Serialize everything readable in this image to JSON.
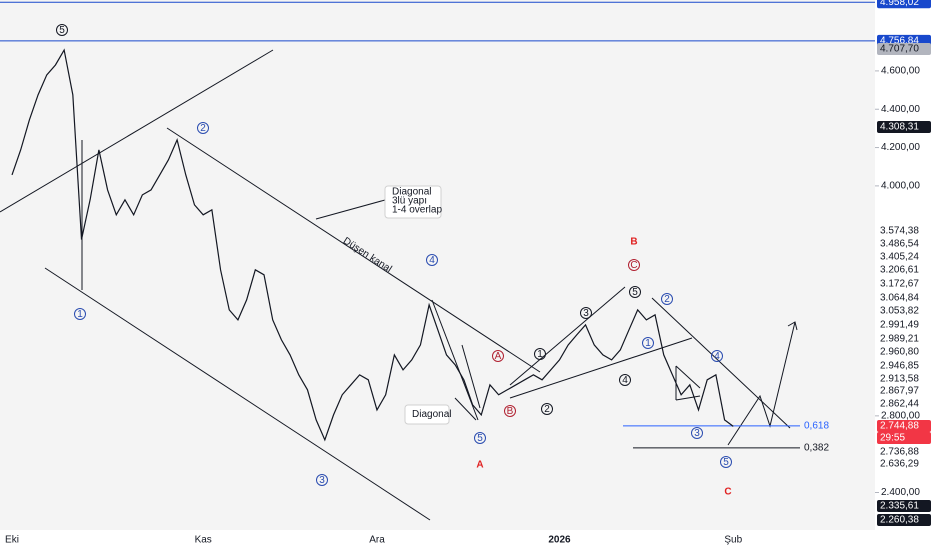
{
  "chart_data": {
    "type": "line",
    "color": "#131722",
    "categories": [
      "Eki",
      null,
      null,
      null,
      null,
      null,
      null,
      null,
      null,
      null,
      null,
      null,
      null,
      null,
      null,
      null,
      null,
      null,
      null,
      null,
      null,
      null,
      "Kas",
      null,
      null,
      null,
      null,
      null,
      null,
      null,
      null,
      null,
      null,
      null,
      null,
      null,
      null,
      null,
      null,
      null,
      null,
      null,
      "Ara",
      null,
      null,
      null,
      null,
      null,
      null,
      null,
      null,
      null,
      null,
      null,
      null,
      null,
      null,
      null,
      null,
      null,
      null,
      null,
      null,
      "2026",
      null,
      null,
      null,
      null,
      null,
      null,
      null,
      null,
      null,
      null,
      null,
      null,
      null,
      null,
      null,
      null,
      null,
      null,
      null,
      "Şub"
    ],
    "values": [
      4057,
      4188,
      4344,
      4475,
      4579,
      4631,
      4709,
      4475,
      3720,
      3930,
      4188,
      3979,
      3849,
      3927,
      3849,
      3953,
      3979,
      4057,
      4136,
      4240,
      4057,
      3901,
      3849,
      3875,
      3562,
      3353,
      3301,
      3405,
      3562,
      3536,
      3301,
      3197,
      3118,
      3014,
      2936,
      2779,
      2675,
      2805,
      2910,
      2962,
      3014,
      2988,
      2831,
      2910,
      3118,
      3040,
      3092,
      3170,
      3379,
      3249,
      3118,
      3066,
      2988,
      2858,
      2805,
      2962,
      2910,
      2936,
      2962,
      2988,
      3014,
      2988,
      3040,
      3092,
      3170,
      3223,
      3275,
      3170,
      3118,
      3092,
      3144,
      3249,
      3353,
      3301,
      3327,
      3118,
      3014,
      2910,
      2962,
      2831,
      2988,
      3014,
      2779,
      2745
    ],
    "ylim": [
      2100,
      4970
    ],
    "yticks": [
      {
        "value": 2400,
        "label": "2.400,00"
      },
      {
        "value": 2800,
        "label": "2.800,00"
      },
      {
        "value": 4000,
        "label": "4.000,00"
      },
      {
        "value": 4200,
        "label": "4.200,00"
      },
      {
        "value": 4400,
        "label": "4.400,00"
      },
      {
        "value": 4600,
        "label": "4.600,00"
      }
    ],
    "hlines": [
      {
        "value": 4958.02,
        "label": "4.958,02",
        "color": "#1848cc"
      },
      {
        "value": 4756.84,
        "label": "4.756,84",
        "color": "#1848cc"
      }
    ],
    "fib_levels": [
      {
        "value": 2748,
        "label": "0,618",
        "color": "#2962ff"
      },
      {
        "value": 2633,
        "label": "0,382",
        "color": "#131722"
      }
    ],
    "price_tags": [
      {
        "label": "4.707,70",
        "bg": "#b2b5be",
        "fg": "#131722"
      },
      {
        "label": "4.308,31",
        "bg": "#131722",
        "fg": "#ffffff"
      },
      {
        "label": "3.574,38",
        "bg": "#ffffff",
        "fg": "#131722"
      },
      {
        "label": "3.486,54",
        "bg": "#ffffff",
        "fg": "#131722"
      },
      {
        "label": "3.405,24",
        "bg": "#ffffff",
        "fg": "#131722"
      },
      {
        "label": "3.206,61",
        "bg": "#ffffff",
        "fg": "#131722"
      },
      {
        "label": "3.172,67",
        "bg": "#ffffff",
        "fg": "#131722"
      },
      {
        "label": "3.064,84",
        "bg": "#ffffff",
        "fg": "#131722"
      },
      {
        "label": "3.053,82",
        "bg": "#ffffff",
        "fg": "#131722"
      },
      {
        "label": "2.991,49",
        "bg": "#ffffff",
        "fg": "#131722"
      },
      {
        "label": "2.989,21",
        "bg": "#ffffff",
        "fg": "#131722"
      },
      {
        "label": "2.960,80",
        "bg": "#ffffff",
        "fg": "#131722"
      },
      {
        "label": "2.946,85",
        "bg": "#ffffff",
        "fg": "#131722"
      },
      {
        "label": "2.913,58",
        "bg": "#ffffff",
        "fg": "#131722"
      },
      {
        "label": "2.867,97",
        "bg": "#ffffff",
        "fg": "#131722"
      },
      {
        "label": "2.862,44",
        "bg": "#ffffff",
        "fg": "#131722"
      },
      {
        "label": "2.744,88",
        "bg": "#f23645",
        "fg": "#ffffff"
      },
      {
        "label": "29:55",
        "bg": "#f23645",
        "fg": "#ffffff"
      },
      {
        "label": "2.736,88",
        "bg": "#ffffff",
        "fg": "#131722"
      },
      {
        "label": "2.636,29",
        "bg": "#ffffff",
        "fg": "#131722"
      },
      {
        "label": "2.335,61",
        "bg": "#131722",
        "fg": "#ffffff"
      },
      {
        "label": "2.260,38",
        "bg": "#131722",
        "fg": "#ffffff"
      }
    ],
    "annotations": [
      {
        "text": "5",
        "color": "#131722",
        "circled": true
      },
      {
        "text": "1",
        "color": "#2a4cb0",
        "circled": true
      },
      {
        "text": "2",
        "color": "#2a4cb0",
        "circled": true
      },
      {
        "text": "3",
        "color": "#2a4cb0",
        "circled": true
      },
      {
        "text": "4",
        "color": "#2a4cb0",
        "circled": true
      },
      {
        "text": "5",
        "color": "#2a4cb0",
        "circled": true
      },
      {
        "text": "A",
        "color": "#e02020",
        "circled": false
      },
      {
        "text": "A",
        "color": "#b02030",
        "circled": true
      },
      {
        "text": "B",
        "color": "#b02030",
        "circled": true
      },
      {
        "text": "1",
        "color": "#131722",
        "circled": true
      },
      {
        "text": "2",
        "color": "#131722",
        "circled": true
      },
      {
        "text": "3",
        "color": "#131722",
        "circled": true
      },
      {
        "text": "4",
        "color": "#131722",
        "circled": true
      },
      {
        "text": "5",
        "color": "#131722",
        "circled": true
      },
      {
        "text": "B",
        "color": "#e02020",
        "circled": false
      },
      {
        "text": "C",
        "color": "#b02030",
        "circled": true
      },
      {
        "text": "1",
        "color": "#2a4cb0",
        "circled": true
      },
      {
        "text": "2",
        "color": "#2a4cb0",
        "circled": true
      },
      {
        "text": "3",
        "color": "#2a4cb0",
        "circled": true
      },
      {
        "text": "4",
        "color": "#2a4cb0",
        "circled": true
      },
      {
        "text": "5",
        "color": "#2a4cb0",
        "circled": true
      },
      {
        "text": "C",
        "color": "#e02020",
        "circled": false
      }
    ],
    "notes": [
      [
        "Diagonal",
        "3lü yapı",
        "1-4 overlap"
      ],
      [
        "Diagonal"
      ]
    ],
    "channel_label": "Düşen kanal"
  }
}
